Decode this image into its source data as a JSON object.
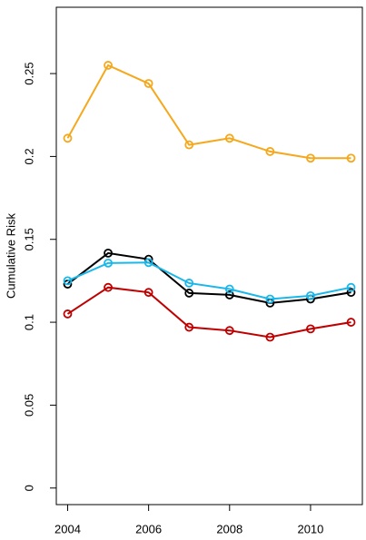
{
  "chart_data": {
    "type": "line",
    "y_label": "Cumulative Risk",
    "x": [
      2004,
      2005,
      2006,
      2007,
      2008,
      2009,
      2010,
      2011
    ],
    "series": [
      {
        "color": "#f5a81c",
        "values": [
          0.211,
          0.255,
          0.244,
          0.207,
          0.211,
          0.203,
          0.199,
          0.199
        ]
      },
      {
        "color": "#000000",
        "values": [
          0.123,
          0.1417,
          0.138,
          0.1176,
          0.1165,
          0.1116,
          0.114,
          0.118
        ]
      },
      {
        "color": "#1ab8ea",
        "values": [
          0.125,
          0.1357,
          0.136,
          0.1236,
          0.12,
          0.114,
          0.116,
          0.121
        ]
      },
      {
        "color": "#c00000",
        "values": [
          0.105,
          0.121,
          0.118,
          0.097,
          0.095,
          0.091,
          0.096,
          0.1
        ]
      }
    ],
    "xlim": [
      2003.72,
      2011.28
    ],
    "xticks": [
      2004,
      2006,
      2008,
      2010
    ],
    "ylim": [
      -0.01,
      0.29
    ],
    "yticks": [
      0,
      0.05,
      0.1,
      0.15,
      0.2,
      0.25
    ],
    "grid": false
  }
}
